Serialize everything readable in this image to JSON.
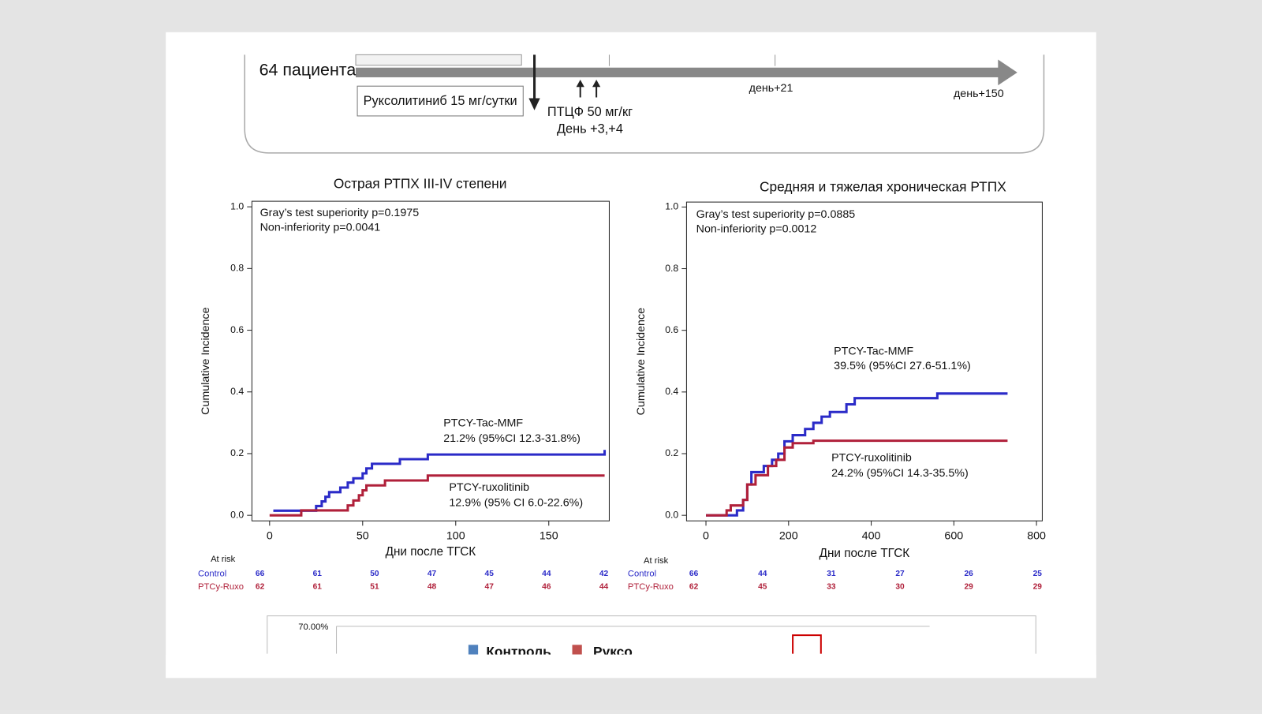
{
  "diagram": {
    "patients": "64 пациента",
    "drug_box": "Руксолитиниб 15 мг/сутки",
    "ptcy": "ПТЦФ 50 мг/кг",
    "ptcy_days": "День +3,+4",
    "day21": "день+21",
    "day150": "день+150"
  },
  "chart_data": [
    {
      "type": "step-line",
      "title": "Острая РТПХ III-IV степени",
      "x_label": "Дни после ТГСК",
      "y_label": "Cumulative Incidence",
      "xlim": [
        -9.5,
        182.5
      ],
      "ylim": [
        -0.018,
        1.018
      ],
      "xticks": [
        0,
        50,
        100,
        150
      ],
      "yticks": [
        {
          "value": 0,
          "label": "0.0"
        },
        {
          "value": 0.2,
          "label": "0.2"
        },
        {
          "value": 0.4,
          "label": "0.4"
        },
        {
          "value": 0.6,
          "label": "0.6"
        },
        {
          "value": 0.8,
          "label": "0.8"
        },
        {
          "value": 1,
          "label": "1.0"
        }
      ],
      "annotations": [
        "Gray’s test superiority p=0.1975",
        "Non-inferiority p=0.0041",
        "PTCY-Tac-MMF",
        "21.2% (95%CI 12.3-31.8%)",
        "PTCY-ruxolitinib",
        "12.9% (95% CI 6.0-22.6%)"
      ],
      "series": [
        {
          "name": "Control",
          "color": "#2b2bc8",
          "x": [
            2,
            18,
            25,
            28,
            30,
            32,
            38,
            42,
            45,
            50,
            52,
            55,
            70,
            85,
            180
          ],
          "values": [
            0.015,
            0.015,
            0.03,
            0.045,
            0.06,
            0.075,
            0.09,
            0.106,
            0.12,
            0.136,
            0.152,
            0.167,
            0.182,
            0.197,
            0.212
          ]
        },
        {
          "name": "PTCy-Ruxo",
          "color": "#b0203a",
          "x": [
            0,
            17,
            40,
            42,
            45,
            48,
            50,
            52,
            62,
            85,
            180
          ],
          "values": [
            0,
            0.016,
            0.016,
            0.032,
            0.048,
            0.065,
            0.081,
            0.097,
            0.113,
            0.129,
            0.129
          ]
        }
      ],
      "at_risk": {
        "title": "At risk",
        "rows": [
          [
            66,
            61,
            50,
            47,
            45,
            44,
            42
          ],
          [
            62,
            61,
            51,
            48,
            47,
            46,
            44
          ]
        ]
      }
    },
    {
      "type": "step-line",
      "title": "Средняя и тяжелая хроническая РТПХ",
      "x_label": "Дни после ТГСК",
      "y_label": "Cumulative Incidence",
      "xlim": [
        -47,
        814
      ],
      "ylim": [
        -0.018,
        1.016
      ],
      "xticks": [
        0,
        200,
        400,
        600,
        800
      ],
      "yticks": [
        {
          "value": 0,
          "label": "0.0"
        },
        {
          "value": 0.2,
          "label": "0.2"
        },
        {
          "value": 0.4,
          "label": "0.4"
        },
        {
          "value": 0.6,
          "label": "0.6"
        },
        {
          "value": 0.8,
          "label": "0.8"
        },
        {
          "value": 1,
          "label": "1.0"
        }
      ],
      "annotations": [
        "Gray’s test superiority p=0.0885",
        "Non-inferiority p=0.0012",
        "PTCY-Tac-MMF",
        "39.5% (95%CI 27.6-51.1%)",
        "PTCY-ruxolitinib",
        "24.2% (95%CI 14.3-35.5%)"
      ],
      "series": [
        {
          "name": "Control",
          "color": "#2b2bc8",
          "x": [
            0,
            70,
            75,
            90,
            100,
            110,
            140,
            160,
            175,
            190,
            210,
            240,
            260,
            280,
            300,
            340,
            360,
            560,
            730
          ],
          "values": [
            0,
            0,
            0.016,
            0.05,
            0.1,
            0.14,
            0.16,
            0.18,
            0.2,
            0.24,
            0.26,
            0.28,
            0.3,
            0.32,
            0.335,
            0.36,
            0.38,
            0.395,
            0.395
          ]
        },
        {
          "name": "PTCy-Ruxo",
          "color": "#b0203a",
          "x": [
            0,
            50,
            60,
            90,
            100,
            120,
            150,
            170,
            190,
            210,
            260,
            730
          ],
          "values": [
            0,
            0.016,
            0.032,
            0.05,
            0.1,
            0.13,
            0.16,
            0.18,
            0.22,
            0.234,
            0.242,
            0.242
          ]
        }
      ],
      "at_risk": {
        "title": "At risk",
        "rows": [
          [
            66,
            44,
            31,
            27,
            26,
            25
          ],
          [
            62,
            45,
            33,
            30,
            29,
            29
          ]
        ]
      }
    }
  ],
  "bottom_chart": {
    "ytick": "70.00%",
    "legend": [
      "Контроль",
      "Руксо"
    ]
  }
}
